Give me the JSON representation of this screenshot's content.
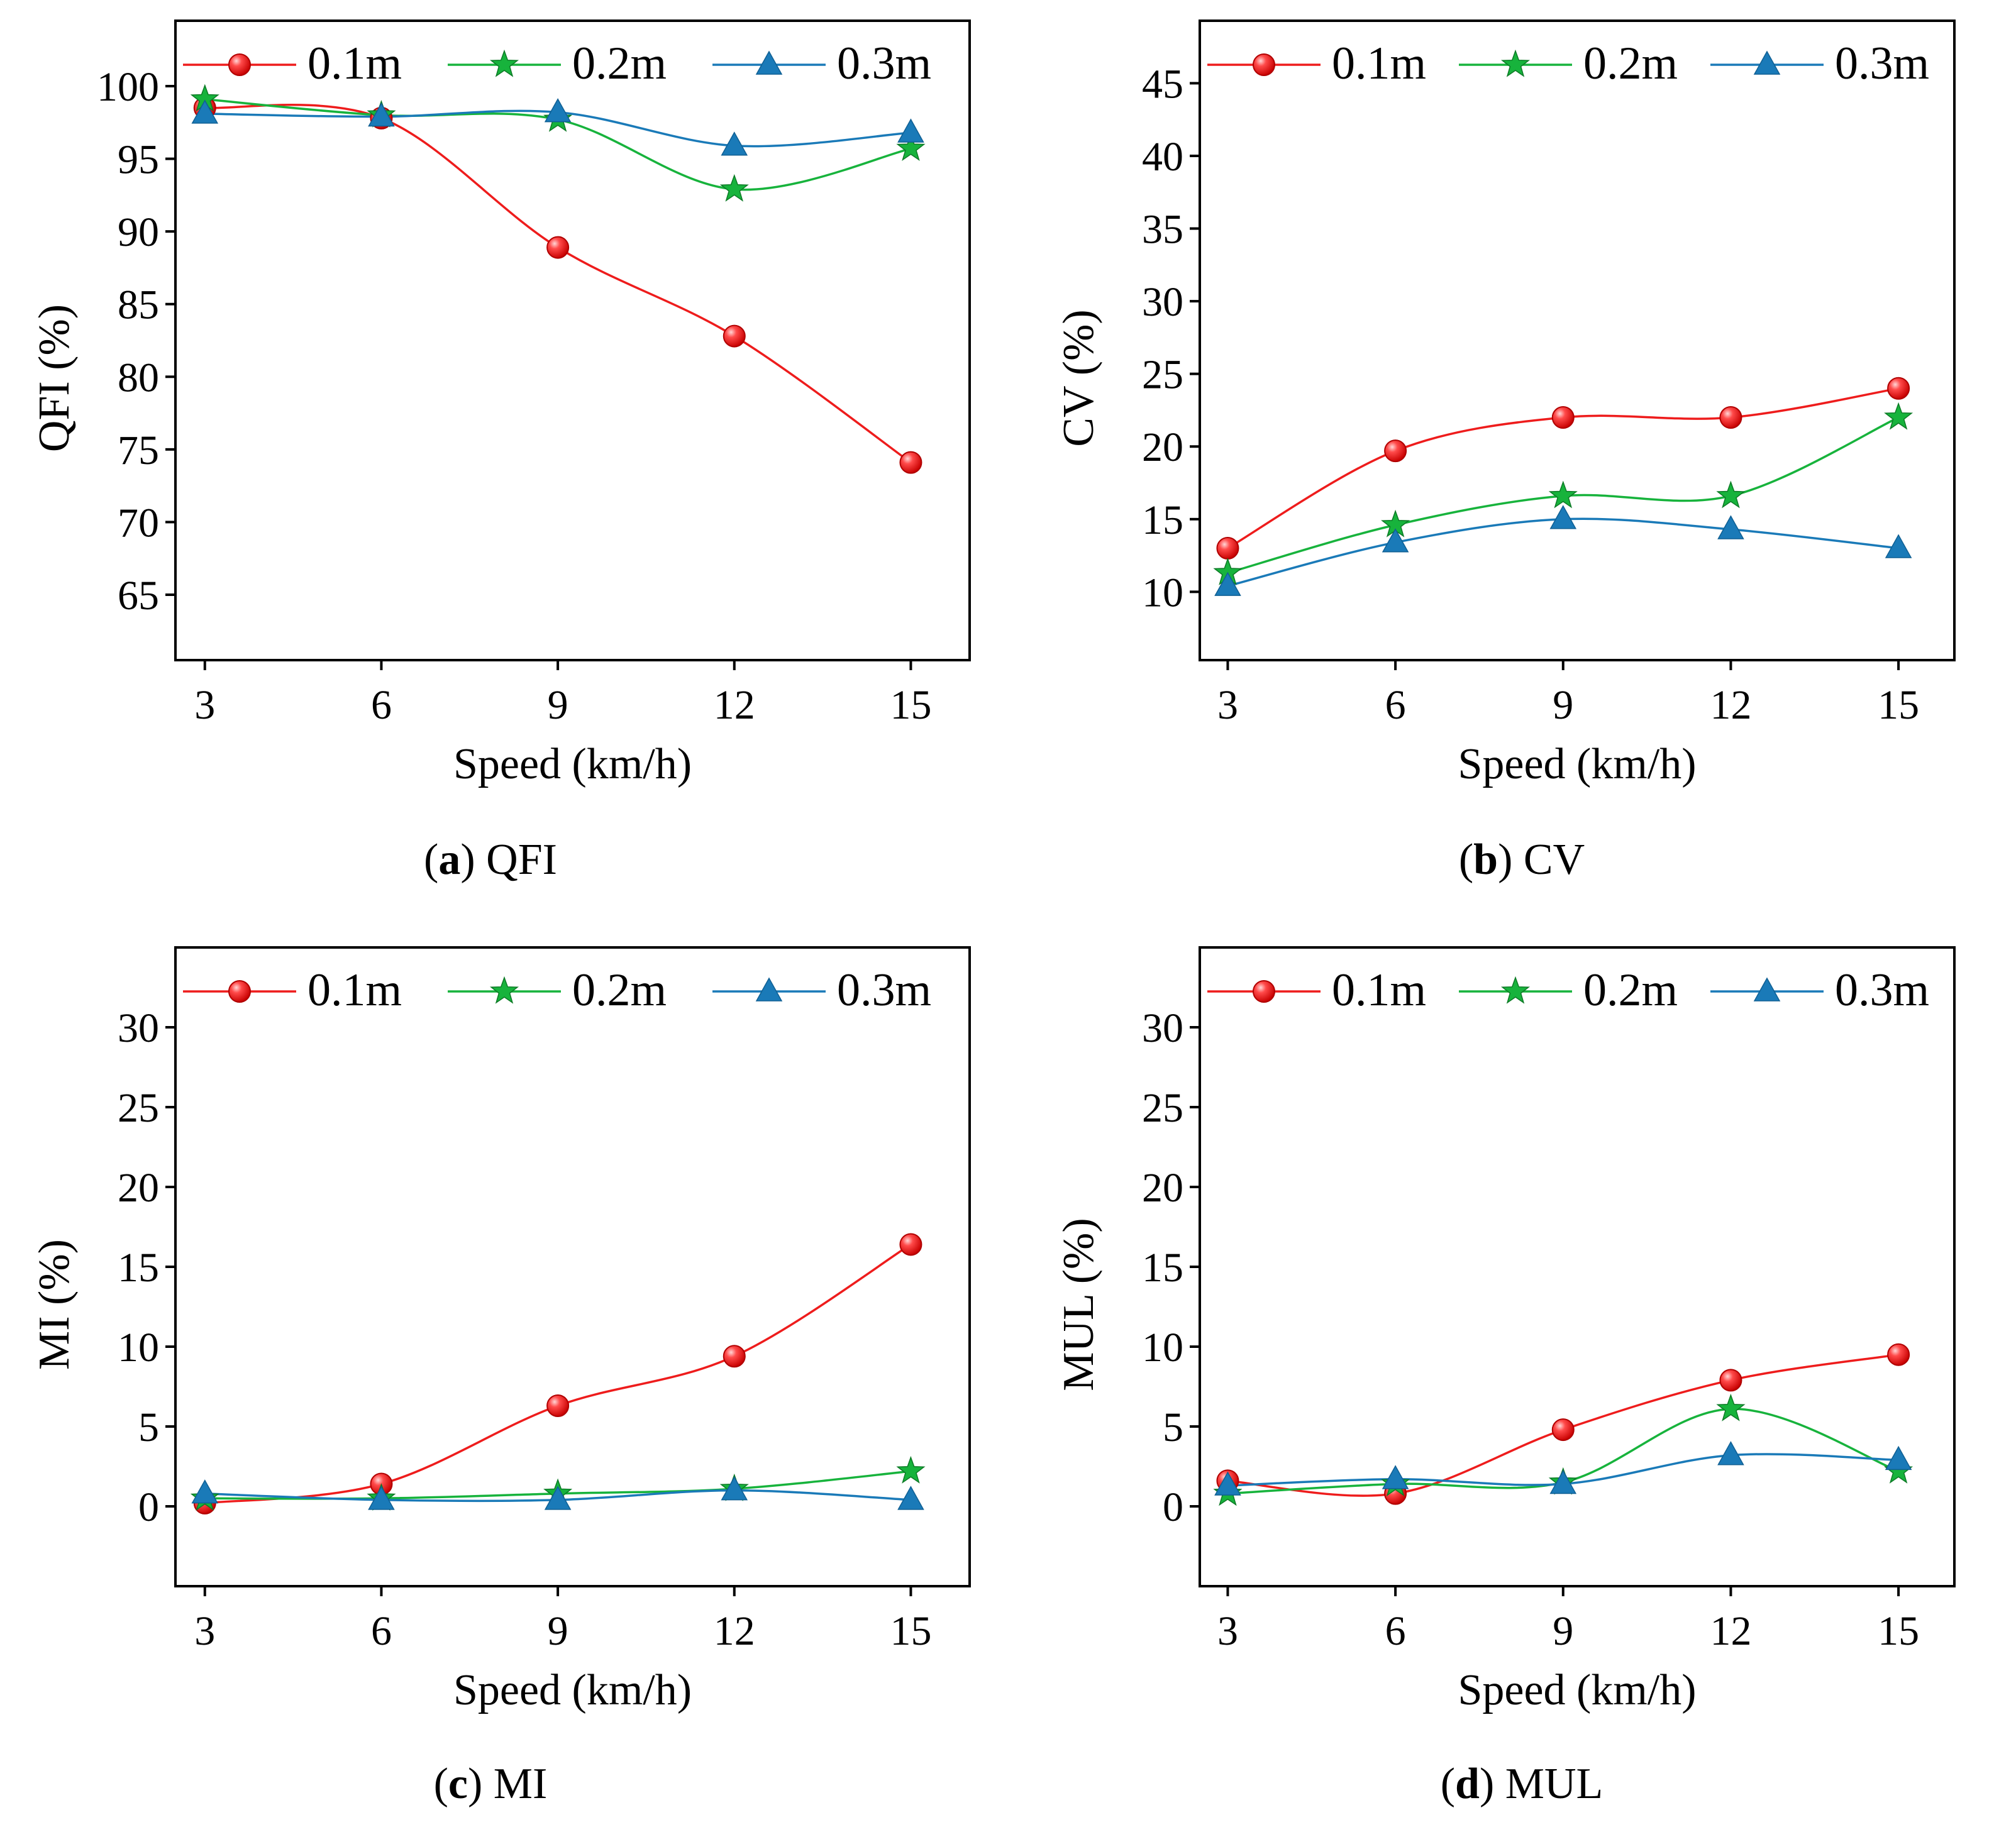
{
  "figure": {
    "colors": {
      "s1": "#ee1c1c",
      "s2": "#17b33c",
      "s3": "#1a7ab8"
    },
    "legend_labels": [
      "0.1m",
      "0.2m",
      "0.3m"
    ]
  },
  "chart_data": [
    {
      "id": "a",
      "type": "line",
      "caption": {
        "letter": "a",
        "text": " QFI"
      },
      "xlabel": "Speed (km/h)",
      "ylabel": "QFI (%)",
      "x": [
        3,
        6,
        9,
        12,
        15
      ],
      "xlim": [
        2.5,
        16
      ],
      "xticks": [
        3,
        6,
        9,
        12,
        15
      ],
      "ylim": [
        60.5,
        104.5
      ],
      "yticks": [
        65,
        70,
        75,
        80,
        85,
        90,
        95,
        100
      ],
      "legend_position": "top",
      "series": [
        {
          "name": "0.1m",
          "values": [
            98.5,
            97.8,
            88.9,
            82.8,
            74.1
          ]
        },
        {
          "name": "0.2m",
          "values": [
            99.1,
            98.0,
            97.7,
            92.9,
            95.7
          ]
        },
        {
          "name": "0.3m",
          "values": [
            98.1,
            97.9,
            98.2,
            95.9,
            96.8
          ]
        }
      ]
    },
    {
      "id": "b",
      "type": "line",
      "caption": {
        "letter": "b",
        "text": " CV"
      },
      "xlabel": "Speed (km/h)",
      "ylabel": "CV (%)",
      "x": [
        3,
        6,
        9,
        12,
        15
      ],
      "xlim": [
        2.5,
        16
      ],
      "xticks": [
        3,
        6,
        9,
        12,
        15
      ],
      "ylim": [
        5.3,
        49.3
      ],
      "yticks": [
        10,
        15,
        20,
        25,
        30,
        35,
        40,
        45
      ],
      "legend_position": "top",
      "series": [
        {
          "name": "0.1m",
          "values": [
            13.0,
            19.7,
            22.0,
            22.0,
            24.0
          ]
        },
        {
          "name": "0.2m",
          "values": [
            11.3,
            14.6,
            16.6,
            16.6,
            22.0
          ]
        },
        {
          "name": "0.3m",
          "values": [
            10.4,
            13.4,
            15.0,
            14.3,
            13.0
          ]
        }
      ]
    },
    {
      "id": "c",
      "type": "line",
      "caption": {
        "letter": "c",
        "text": " MI"
      },
      "xlabel": "Speed (km/h)",
      "ylabel": "MI (%)",
      "x": [
        3,
        6,
        9,
        12,
        15
      ],
      "xlim": [
        2.5,
        16
      ],
      "xticks": [
        3,
        6,
        9,
        12,
        15
      ],
      "ylim": [
        -5,
        35
      ],
      "yticks": [
        0,
        5,
        10,
        15,
        20,
        25,
        30
      ],
      "legend_position": "top",
      "series": [
        {
          "name": "0.1m",
          "values": [
            0.2,
            1.4,
            6.3,
            9.4,
            16.4
          ]
        },
        {
          "name": "0.2m",
          "values": [
            0.5,
            0.5,
            0.8,
            1.1,
            2.2
          ]
        },
        {
          "name": "0.3m",
          "values": [
            0.8,
            0.4,
            0.4,
            1.0,
            0.4
          ]
        }
      ]
    },
    {
      "id": "d",
      "type": "line",
      "caption": {
        "letter": "d",
        "text": " MUL"
      },
      "xlabel": "Speed (km/h)",
      "ylabel": "MUL (%)",
      "x": [
        3,
        6,
        9,
        12,
        15
      ],
      "xlim": [
        2.5,
        16
      ],
      "xticks": [
        3,
        6,
        9,
        12,
        15
      ],
      "ylim": [
        -5,
        35
      ],
      "yticks": [
        0,
        5,
        10,
        15,
        20,
        25,
        30
      ],
      "legend_position": "top",
      "series": [
        {
          "name": "0.1m",
          "values": [
            1.6,
            0.8,
            4.8,
            7.9,
            9.5
          ]
        },
        {
          "name": "0.2m",
          "values": [
            0.8,
            1.4,
            1.5,
            6.1,
            2.2
          ]
        },
        {
          "name": "0.3m",
          "values": [
            1.3,
            1.7,
            1.4,
            3.2,
            2.9
          ]
        }
      ]
    }
  ]
}
